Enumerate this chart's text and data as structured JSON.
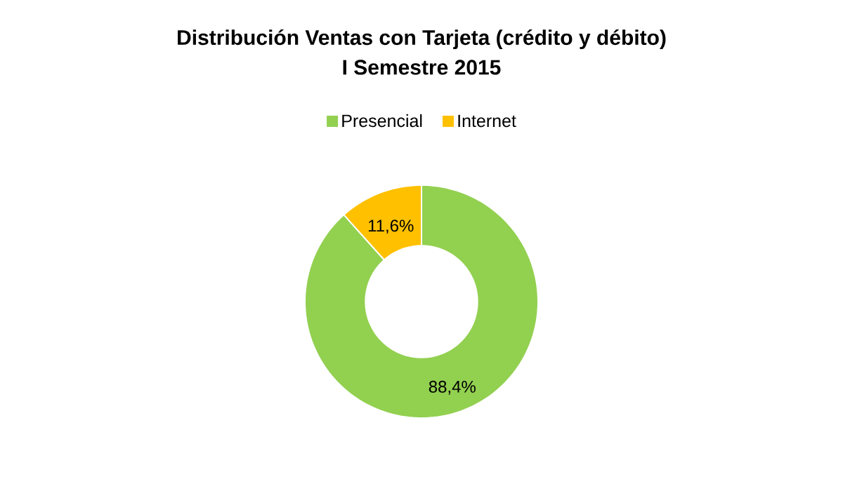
{
  "chart_data": {
    "type": "donut",
    "title": "Distribución Ventas con Tarjeta (crédito y débito)",
    "subtitle": "I Semestre 2015",
    "categories": [
      "Presencial",
      "Internet"
    ],
    "values": [
      88.4,
      11.6
    ],
    "colors": [
      "#92d050",
      "#ffc000"
    ],
    "value_labels": [
      "88,4%",
      "11,6%"
    ],
    "legend": "top"
  }
}
